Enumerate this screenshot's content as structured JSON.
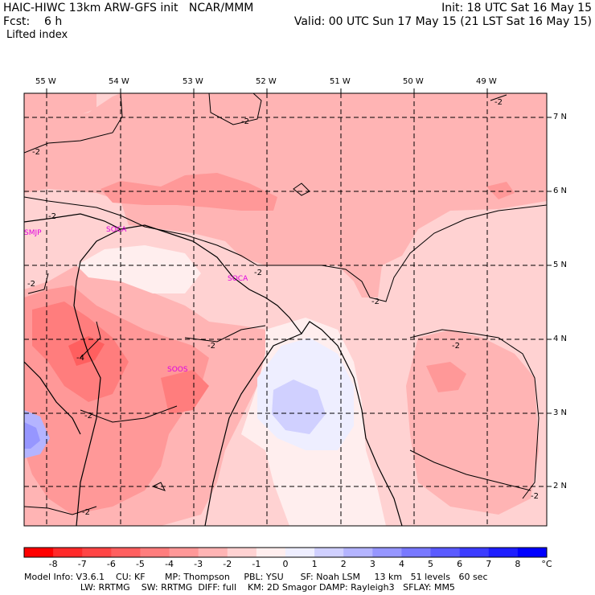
{
  "header": {
    "left_line1": "HAIC-HIWC 13km ARW-GFS init   NCAR/MMM",
    "left_line2": "Fcst:    6 h",
    "left_line3": "Lifted index",
    "right_line1": "Init: 18 UTC Sat 16 May 15",
    "right_line2": "Valid: 00 UTC Sun 17 May 15 (21 LST Sat 16 May 15)"
  },
  "longitude_labels": [
    "55 W",
    "54 W",
    "53 W",
    "52 W",
    "51 W",
    "50 W",
    "49 W"
  ],
  "latitude_labels": [
    "7 N",
    "6 N",
    "5 N",
    "4 N",
    "3 N",
    "2 N"
  ],
  "stations": [
    "SMJP",
    "SOCA",
    "SOCA",
    "SOOS"
  ],
  "contour_labels": [
    "-2",
    "-2",
    "-2",
    "-2",
    "-2",
    "-2",
    "-2",
    "-2",
    "-2",
    "-2",
    "-2",
    "-2",
    "-4"
  ],
  "colorbar": {
    "labels": [
      "-8",
      "-7",
      "-6",
      "-5",
      "-4",
      "-3",
      "-2",
      "-1",
      "0",
      "1",
      "2",
      "3",
      "4",
      "5",
      "6",
      "7",
      "8"
    ],
    "unit": "°C",
    "colors": [
      "#ff0000",
      "#ff2a2a",
      "#ff4545",
      "#ff5f5f",
      "#ff7d7d",
      "#ff9898",
      "#ffb4b4",
      "#ffd2d2",
      "#ffeeee",
      "#eeeeff",
      "#d0d0ff",
      "#b4b4ff",
      "#9696ff",
      "#7878ff",
      "#5a5aff",
      "#3c3cff",
      "#1e1eff",
      "#0000ff"
    ]
  },
  "footer": {
    "line1": "Model Info: V3.6.1    CU: KF       MP: Thompson     PBL: YSU      SF: Noah LSM     13 km   51 levels   60 sec",
    "line2": "                    LW: RRTMG    SW: RRTMG  DIFF: full    KM: 2D Smagor DAMP: Rayleigh3   SFLAY: MM5"
  }
}
